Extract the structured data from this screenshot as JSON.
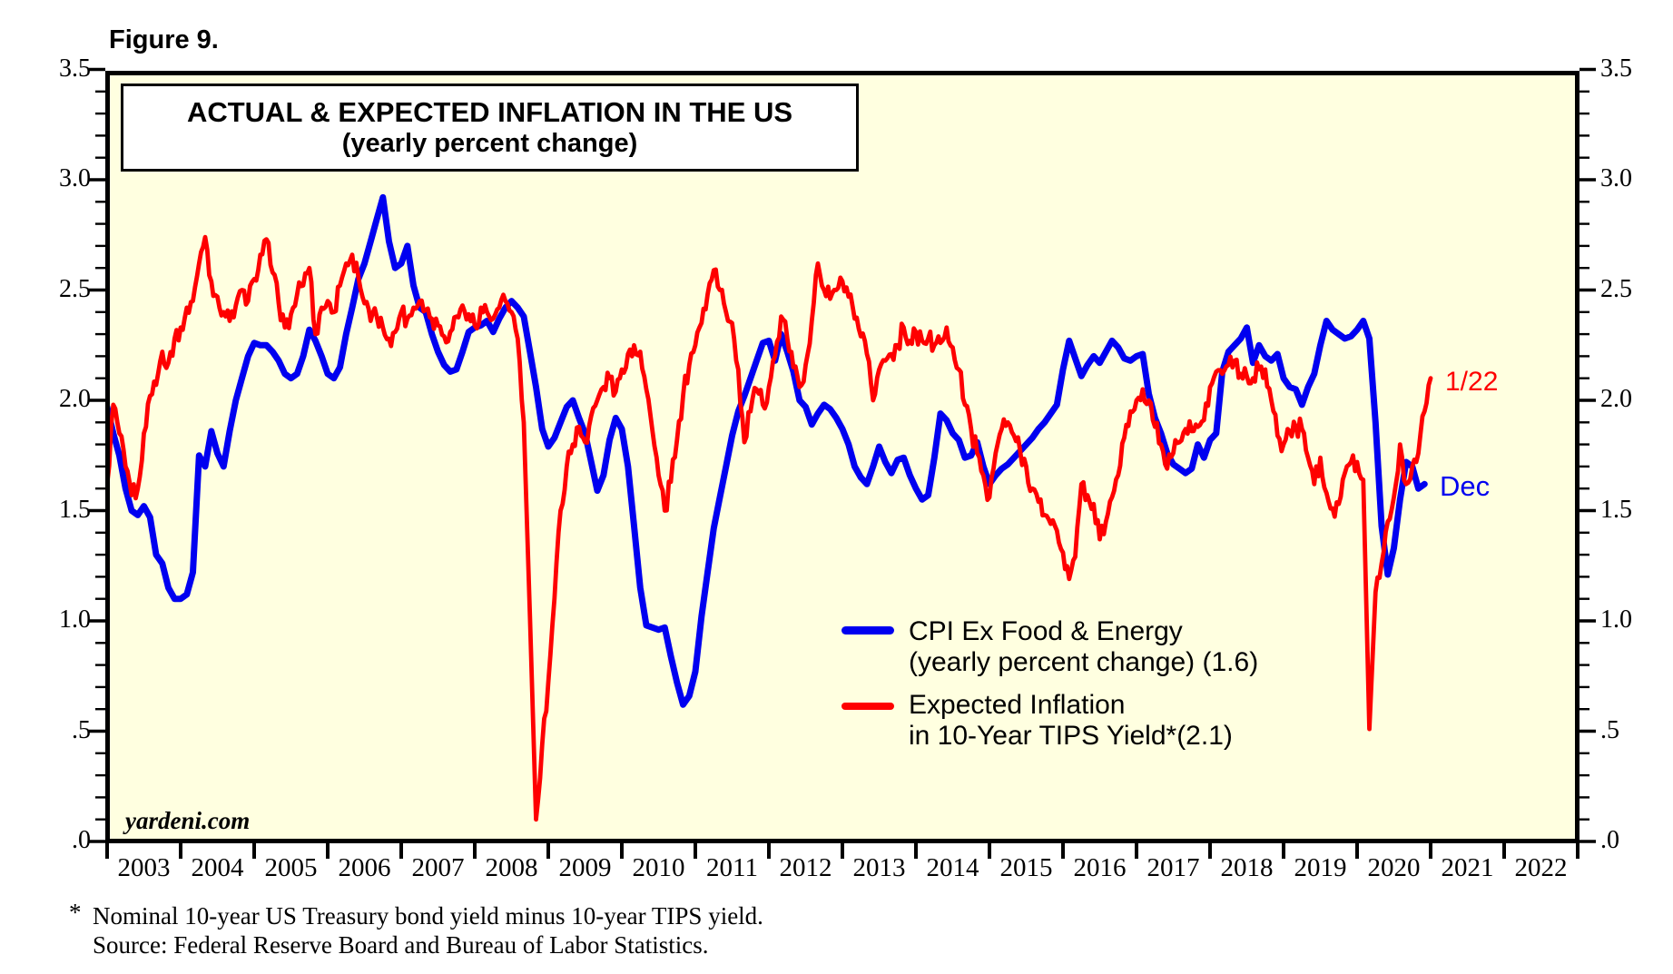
{
  "figure": {
    "label": "Figure 9."
  },
  "title": {
    "line1": "ACTUAL & EXPECTED INFLATION IN THE US",
    "line2": "(yearly percent change)"
  },
  "watermark": "yardeni.com",
  "legend": {
    "items": [
      {
        "id": "cpi",
        "color": "#0000f0",
        "line1": "CPI Ex Food & Energy",
        "line2": "(yearly percent change) (1.6)"
      },
      {
        "id": "tips",
        "color": "#fe0000",
        "line1": "Expected Inflation",
        "line2": "in 10-Year TIPS Yield*(2.1)"
      }
    ]
  },
  "annotations": [
    {
      "id": "tips-end",
      "text": "1/22",
      "color": "#fe0000"
    },
    {
      "id": "cpi-end",
      "text": "Dec",
      "color": "#0000f0"
    }
  ],
  "footnote": {
    "marker": "*",
    "line1": "Nominal 10-year US Treasury bond yield minus 10-year TIPS yield.",
    "line2": "Source: Federal Reserve Board and Bureau of Labor Statistics."
  },
  "chart_data": {
    "type": "line",
    "title": "ACTUAL & EXPECTED INFLATION IN THE US",
    "subtitle": "(yearly percent change)",
    "plot_background": "#ffffe0",
    "frame_color": "#000000",
    "grid": false,
    "legend_position": "inside-center-right",
    "x_axis": {
      "start_year": 2003,
      "end_year": 2023,
      "tick_every_years": 1,
      "labels": [
        "2003",
        "2004",
        "2005",
        "2006",
        "2007",
        "2008",
        "2009",
        "2010",
        "2011",
        "2012",
        "2013",
        "2014",
        "2015",
        "2016",
        "2017",
        "2018",
        "2019",
        "2020",
        "2021",
        "2022"
      ]
    },
    "y_axis": {
      "min": 0.0,
      "max": 3.5,
      "major_step": 0.5,
      "minor_step": 0.1,
      "labels_top_to_bottom": [
        "3.5",
        "3.0",
        "2.5",
        "2.0",
        "1.5",
        "1.0",
        ".5",
        ".0"
      ],
      "both_sides": true
    },
    "series": [
      {
        "name": "CPI Ex Food & Energy (yearly percent change)",
        "id": "cpi",
        "color": "#0000f0",
        "width": 7,
        "start": "2003-01",
        "frequency": "monthly",
        "end_label": "Dec",
        "end_value": 1.6,
        "values": [
          1.97,
          1.85,
          1.75,
          1.6,
          1.5,
          1.48,
          1.52,
          1.47,
          1.3,
          1.26,
          1.15,
          1.1,
          1.1,
          1.12,
          1.22,
          1.75,
          1.7,
          1.86,
          1.76,
          1.7,
          1.86,
          2.0,
          2.1,
          2.2,
          2.26,
          2.25,
          2.25,
          2.22,
          2.18,
          2.12,
          2.1,
          2.12,
          2.2,
          2.32,
          2.27,
          2.2,
          2.12,
          2.1,
          2.15,
          2.3,
          2.42,
          2.55,
          2.62,
          2.72,
          2.82,
          2.92,
          2.72,
          2.6,
          2.62,
          2.7,
          2.52,
          2.42,
          2.4,
          2.3,
          2.22,
          2.16,
          2.13,
          2.14,
          2.22,
          2.31,
          2.33,
          2.34,
          2.36,
          2.31,
          2.37,
          2.42,
          2.45,
          2.42,
          2.38,
          2.22,
          2.06,
          1.87,
          1.79,
          1.83,
          1.9,
          1.97,
          2.0,
          1.92,
          1.85,
          1.72,
          1.59,
          1.66,
          1.82,
          1.92,
          1.87,
          1.7,
          1.43,
          1.15,
          0.98,
          0.97,
          0.96,
          0.97,
          0.84,
          0.72,
          0.62,
          0.66,
          0.77,
          1.02,
          1.22,
          1.42,
          1.56,
          1.7,
          1.84,
          1.95,
          2.02,
          2.1,
          2.18,
          2.26,
          2.27,
          2.18,
          2.3,
          2.22,
          2.13,
          2.0,
          1.97,
          1.89,
          1.94,
          1.98,
          1.96,
          1.92,
          1.87,
          1.8,
          1.7,
          1.65,
          1.62,
          1.7,
          1.79,
          1.72,
          1.67,
          1.73,
          1.74,
          1.66,
          1.6,
          1.55,
          1.57,
          1.74,
          1.94,
          1.91,
          1.85,
          1.82,
          1.74,
          1.75,
          1.81,
          1.7,
          1.62,
          1.66,
          1.69,
          1.71,
          1.74,
          1.77,
          1.8,
          1.83,
          1.87,
          1.9,
          1.94,
          1.98,
          2.14,
          2.27,
          2.19,
          2.11,
          2.16,
          2.2,
          2.17,
          2.22,
          2.27,
          2.24,
          2.19,
          2.18,
          2.2,
          2.21,
          2.03,
          1.92,
          1.85,
          1.76,
          1.71,
          1.69,
          1.67,
          1.69,
          1.8,
          1.74,
          1.82,
          1.85,
          2.13,
          2.22,
          2.25,
          2.28,
          2.33,
          2.17,
          2.25,
          2.2,
          2.18,
          2.21,
          2.1,
          2.06,
          2.05,
          1.98,
          2.06,
          2.12,
          2.25,
          2.36,
          2.32,
          2.3,
          2.28,
          2.29,
          2.32,
          2.36,
          2.28,
          1.9,
          1.43,
          1.21,
          1.33,
          1.55,
          1.72,
          1.7,
          1.6,
          1.62
        ]
      },
      {
        "name": "Expected Inflation in 10-Year TIPS Yield",
        "id": "tips",
        "color": "#fe0000",
        "width": 4.8,
        "start": "2003-01",
        "frequency": "monthly",
        "end_label": "1/22",
        "end_value": 2.1,
        "noise_amplitude": 0.045,
        "values": [
          1.62,
          1.98,
          1.85,
          1.7,
          1.57,
          1.6,
          1.85,
          2.02,
          2.07,
          2.22,
          2.17,
          2.28,
          2.33,
          2.42,
          2.45,
          2.62,
          2.74,
          2.54,
          2.47,
          2.4,
          2.36,
          2.43,
          2.5,
          2.45,
          2.55,
          2.66,
          2.73,
          2.58,
          2.44,
          2.33,
          2.39,
          2.48,
          2.52,
          2.6,
          2.3,
          2.42,
          2.45,
          2.4,
          2.52,
          2.62,
          2.66,
          2.56,
          2.44,
          2.36,
          2.38,
          2.33,
          2.28,
          2.31,
          2.4,
          2.37,
          2.42,
          2.45,
          2.41,
          2.37,
          2.34,
          2.29,
          2.31,
          2.38,
          2.43,
          2.39,
          2.34,
          2.42,
          2.4,
          2.37,
          2.42,
          2.45,
          2.4,
          2.28,
          1.9,
          1.02,
          0.1,
          0.44,
          0.72,
          1.1,
          1.5,
          1.7,
          1.8,
          1.88,
          1.81,
          1.93,
          2.0,
          2.06,
          2.1,
          2.04,
          2.14,
          2.21,
          2.25,
          2.22,
          2.05,
          1.86,
          1.66,
          1.5,
          1.63,
          1.82,
          2.02,
          2.16,
          2.25,
          2.35,
          2.48,
          2.59,
          2.5,
          2.4,
          2.35,
          2.14,
          1.81,
          1.95,
          2.05,
          1.98,
          2.06,
          2.2,
          2.38,
          2.28,
          2.15,
          2.06,
          2.16,
          2.36,
          2.62,
          2.5,
          2.46,
          2.5,
          2.54,
          2.47,
          2.37,
          2.29,
          2.21,
          2.0,
          2.14,
          2.18,
          2.21,
          2.25,
          2.33,
          2.27,
          2.31,
          2.27,
          2.28,
          2.25,
          2.26,
          2.33,
          2.24,
          2.14,
          1.98,
          1.87,
          1.76,
          1.66,
          1.56,
          1.76,
          1.87,
          1.9,
          1.84,
          1.77,
          1.7,
          1.6,
          1.54,
          1.48,
          1.44,
          1.41,
          1.31,
          1.19,
          1.29,
          1.62,
          1.57,
          1.53,
          1.37,
          1.45,
          1.56,
          1.66,
          1.83,
          1.95,
          2.0,
          2.05,
          2.0,
          1.88,
          1.8,
          1.69,
          1.76,
          1.81,
          1.87,
          1.86,
          1.88,
          1.91,
          2.06,
          2.13,
          2.12,
          2.16,
          2.18,
          2.12,
          2.11,
          2.1,
          2.14,
          2.14,
          2.0,
          1.84,
          1.8,
          1.86,
          1.88,
          1.87,
          1.74,
          1.62,
          1.74,
          1.58,
          1.51,
          1.53,
          1.67,
          1.72,
          1.72,
          1.64,
          0.51,
          1.13,
          1.26,
          1.45,
          1.56,
          1.8,
          1.62,
          1.7,
          1.76,
          1.95,
          2.1
        ]
      }
    ]
  }
}
